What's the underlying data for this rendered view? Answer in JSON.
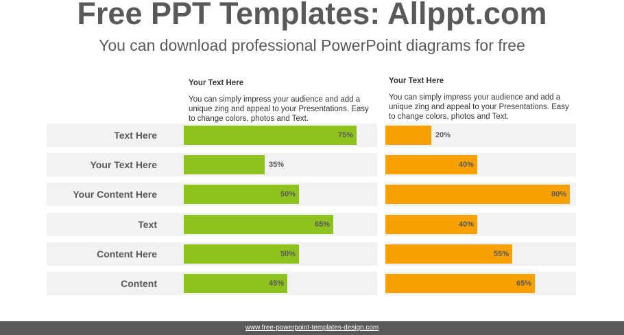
{
  "header": {
    "title": "Free PPT Templates: Allppt.com",
    "subtitle": "You can download professional PowerPoint diagrams for free"
  },
  "descriptions": [
    {
      "heading": "Your Text  Here",
      "body": "You can simply impress your audience and add a unique zing and appeal to your Presentations. Easy to change colors, photos and Text."
    },
    {
      "heading": "Your Text  Here",
      "body": "You can simply impress your audience and add a unique zing and appeal to your Presentations. Easy to change colors, photos and Text."
    }
  ],
  "colors": {
    "green": "#8dc21f",
    "orange": "#f9a101",
    "row_bg": "#f2f2f2",
    "footer": "#595959"
  },
  "chart_data": {
    "type": "bar",
    "categories": [
      "Text Here",
      "Your Text Here",
      "Your Content  Here",
      "Text",
      "Content Here",
      "Content"
    ],
    "series": [
      {
        "values": [
          75,
          35,
          50,
          65,
          50,
          45
        ],
        "labels": [
          "75%",
          "35%",
          "50%",
          "65%",
          "50%",
          "45%"
        ],
        "color": "#8dc21f"
      },
      {
        "values": [
          20,
          40,
          80,
          40,
          55,
          65
        ],
        "labels": [
          "20%",
          "40%",
          "80%",
          "40%",
          "55%",
          "65%"
        ],
        "color": "#f9a101"
      }
    ],
    "ylim": [
      0,
      100
    ]
  },
  "footer": {
    "link": "www.free-powerpoint-templates-design.com"
  }
}
